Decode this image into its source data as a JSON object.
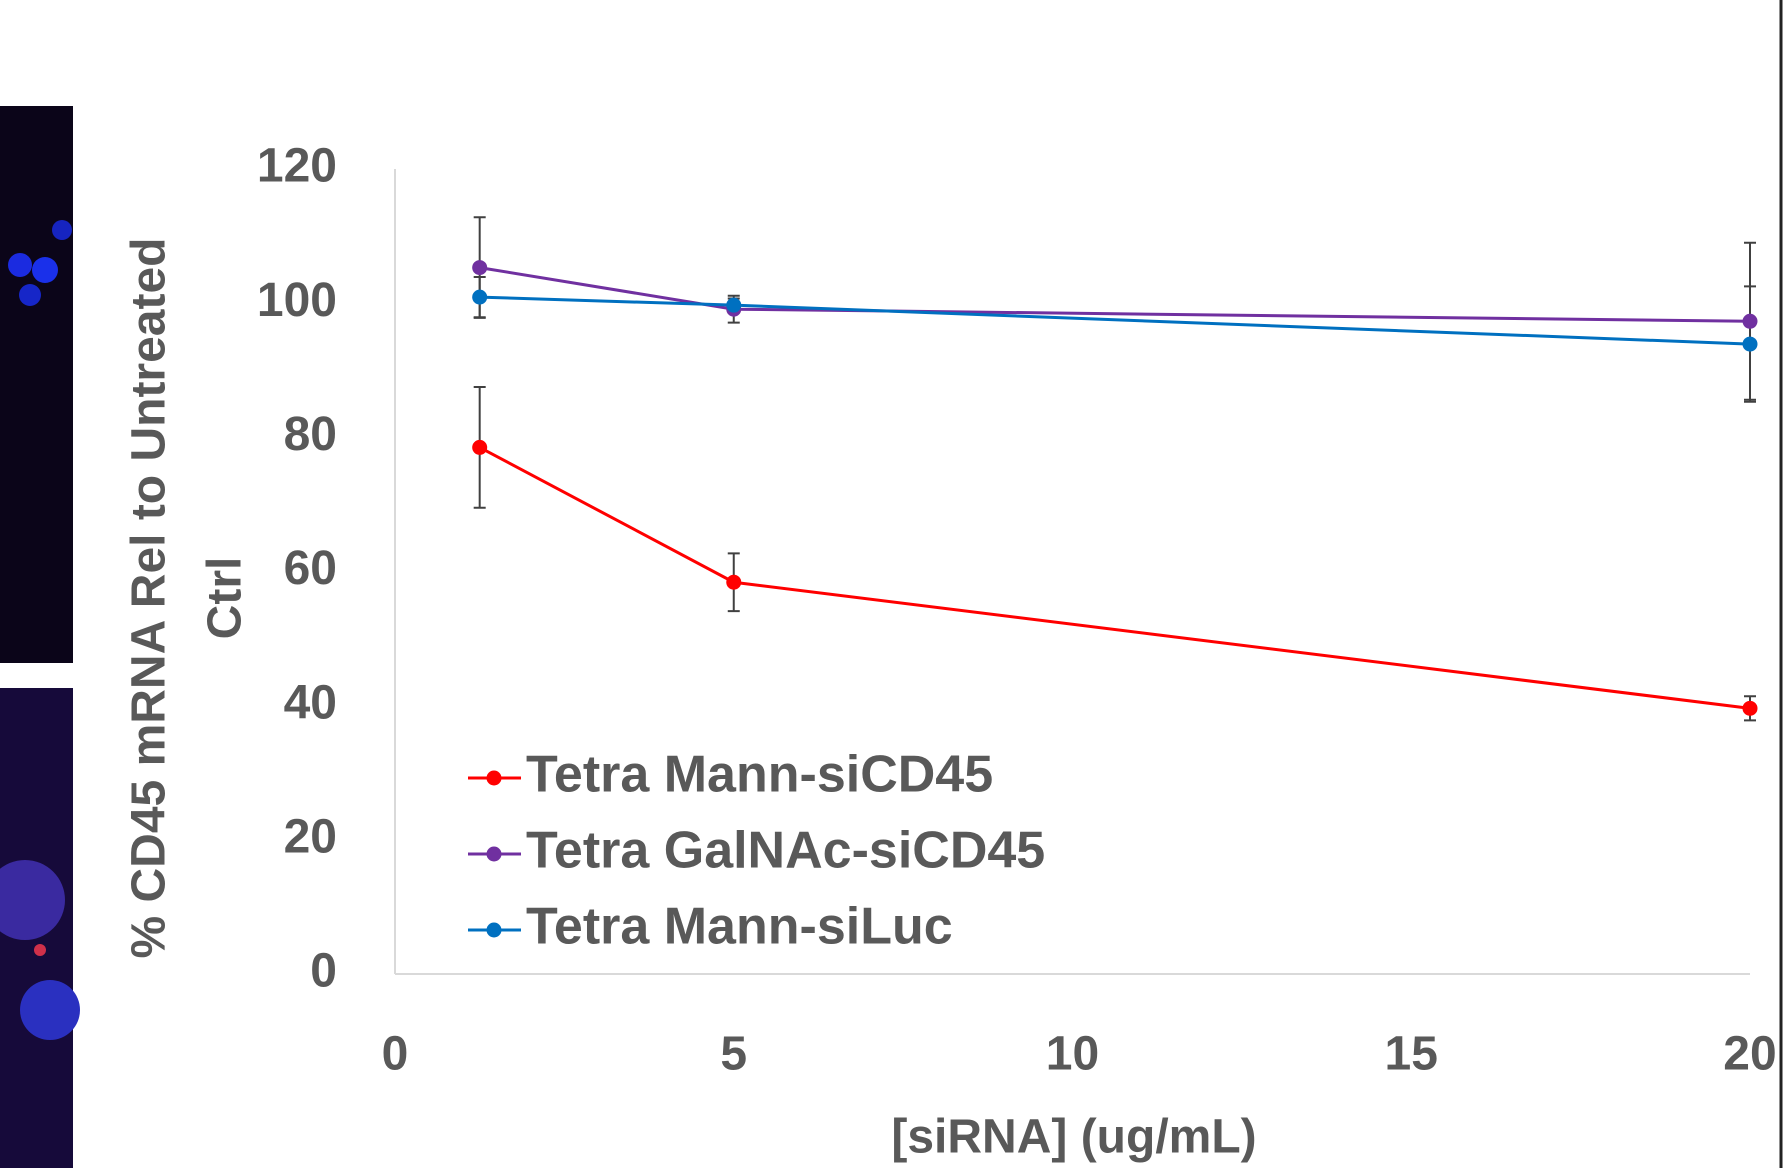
{
  "chart_data": {
    "type": "line",
    "xlabel": "[siRNA] (ug/mL)",
    "ylabel": [
      "% CD45 mRNA Rel to Untreated",
      "Ctrl"
    ],
    "x": [
      1.25,
      5,
      20
    ],
    "series": [
      {
        "name": "Tetra Mann-siCD45",
        "color": "#ff0000",
        "values": [
          78.5,
          58.4,
          39.6
        ],
        "errors": [
          9,
          4.3,
          1.8
        ]
      },
      {
        "name": "Tetra GalNAc-siCD45",
        "color": "#7030a0",
        "values": [
          105.3,
          99.1,
          97.3
        ],
        "errors": [
          7.5,
          2,
          11.7
        ]
      },
      {
        "name": "Tetra Mann-siLuc",
        "color": "#0070c0",
        "values": [
          100.9,
          99.7,
          93.9
        ],
        "errors": [
          3,
          1,
          8.6
        ]
      }
    ],
    "xlim": [
      0,
      20
    ],
    "xticks": [
      0,
      5,
      10,
      15,
      20
    ],
    "ylim": [
      0,
      120
    ],
    "yticks": [
      0,
      20,
      40,
      60,
      80,
      100,
      120
    ],
    "grid": false,
    "legend": "lower left"
  }
}
